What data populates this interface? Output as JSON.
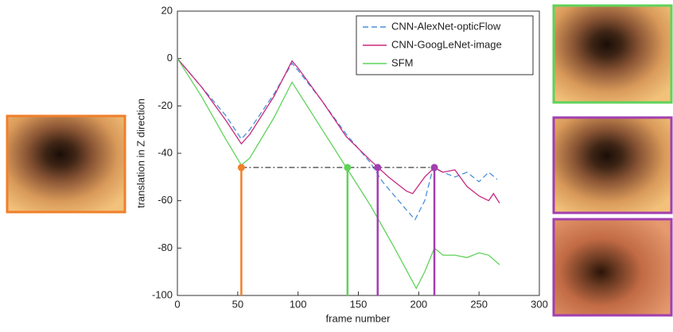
{
  "chart_data": {
    "type": "line",
    "xlabel": "frame number",
    "ylabel": "translation in Z direction",
    "xlim": [
      0,
      300
    ],
    "xticks": [
      0,
      50,
      100,
      150,
      200,
      250,
      300
    ],
    "ylim": [
      -100,
      20
    ],
    "yticks": [
      -100,
      -80,
      -60,
      -40,
      -20,
      0,
      20
    ],
    "legend": "upper right",
    "series": [
      {
        "name": "CNN-AlexNet-opticFlow",
        "color": "#4a90d9",
        "style": "dashed",
        "x": [
          0,
          20,
          40,
          53,
          60,
          80,
          95,
          100,
          120,
          140,
          160,
          170,
          180,
          190,
          197,
          205,
          212,
          220,
          230,
          240,
          250,
          258,
          265
        ],
        "values": [
          0,
          -12,
          -24,
          -34,
          -30,
          -15,
          -2,
          -5,
          -18,
          -32,
          -44,
          -52,
          -58,
          -64,
          -68,
          -60,
          -46,
          -48,
          -50,
          -48,
          -52,
          -48,
          -51
        ]
      },
      {
        "name": "CNN-GoogLeNet-image",
        "color": "#c7297f",
        "style": "solid",
        "x": [
          0,
          20,
          40,
          53,
          60,
          80,
          95,
          100,
          120,
          140,
          160,
          175,
          190,
          195,
          205,
          213,
          220,
          230,
          240,
          250,
          258,
          262,
          267
        ],
        "values": [
          0,
          -12,
          -26,
          -36,
          -32,
          -16,
          -1,
          -4,
          -18,
          -33,
          -43,
          -50,
          -56,
          -57,
          -50,
          -46,
          -48,
          -47,
          -54,
          -58,
          -60,
          -57,
          -61
        ]
      },
      {
        "name": "SFM",
        "color": "#5fd35a",
        "style": "solid",
        "x": [
          0,
          20,
          40,
          53,
          60,
          80,
          95,
          100,
          120,
          140,
          160,
          180,
          198,
          205,
          213,
          220,
          230,
          240,
          250,
          258,
          267
        ],
        "values": [
          0,
          -16,
          -34,
          -45,
          -42,
          -25,
          -10,
          -14,
          -30,
          -46,
          -62,
          -80,
          -97,
          -90,
          -80,
          -83,
          -83,
          -84,
          -82,
          -83,
          -87
        ]
      }
    ],
    "reference_line": {
      "y": -46,
      "x": [
        53,
        213
      ]
    },
    "markers": [
      {
        "x": 53,
        "y": -46,
        "color": "#f07f2a"
      },
      {
        "x": 141,
        "y": -46,
        "color": "#5fd35a"
      },
      {
        "x": 166,
        "y": -46,
        "color": "#a23fb0"
      },
      {
        "x": 213,
        "y": -46,
        "color": "#a23fb0"
      }
    ]
  }
}
